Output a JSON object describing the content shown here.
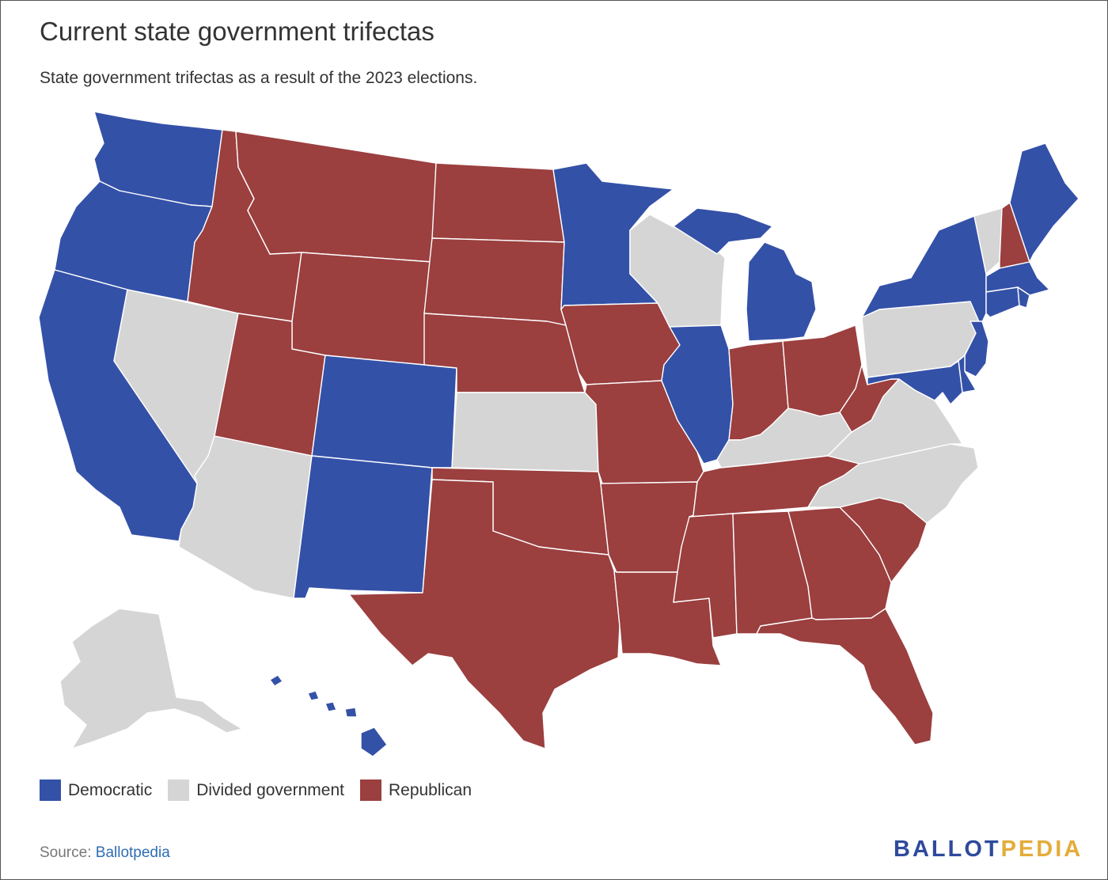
{
  "title": "Current state government trifectas",
  "subtitle": "State government trifectas as a result of the 2023 elections.",
  "colors": {
    "democratic": "#3451a8",
    "divided": "#d5d5d5",
    "republican": "#9b3f3f"
  },
  "legend": [
    {
      "label": "Democratic",
      "status": "democratic"
    },
    {
      "label": "Divided government",
      "status": "divided"
    },
    {
      "label": "Republican",
      "status": "republican"
    }
  ],
  "states": {
    "WA": "democratic",
    "OR": "democratic",
    "CA": "democratic",
    "NV": "divided",
    "ID": "republican",
    "MT": "republican",
    "WY": "republican",
    "UT": "republican",
    "AZ": "divided",
    "CO": "democratic",
    "NM": "democratic",
    "ND": "republican",
    "SD": "republican",
    "NE": "republican",
    "KS": "divided",
    "OK": "republican",
    "TX": "republican",
    "MN": "democratic",
    "IA": "republican",
    "MO": "republican",
    "AR": "republican",
    "LA": "republican",
    "WI": "divided",
    "IL": "democratic",
    "MI": "democratic",
    "IN": "republican",
    "OH": "republican",
    "KY": "divided",
    "TN": "republican",
    "MS": "republican",
    "AL": "republican",
    "GA": "republican",
    "FL": "republican",
    "SC": "republican",
    "NC": "divided",
    "VA": "divided",
    "WV": "republican",
    "PA": "divided",
    "NY": "democratic",
    "VT": "divided",
    "NH": "republican",
    "ME": "democratic",
    "MA": "democratic",
    "RI": "democratic",
    "CT": "democratic",
    "NJ": "democratic",
    "DE": "democratic",
    "MD": "democratic",
    "AK": "divided",
    "HI": "democratic"
  },
  "source": {
    "prefix": "Source:",
    "link": "Ballotpedia"
  },
  "logo": {
    "part1": "BALLOT",
    "part2": "PEDIA"
  }
}
